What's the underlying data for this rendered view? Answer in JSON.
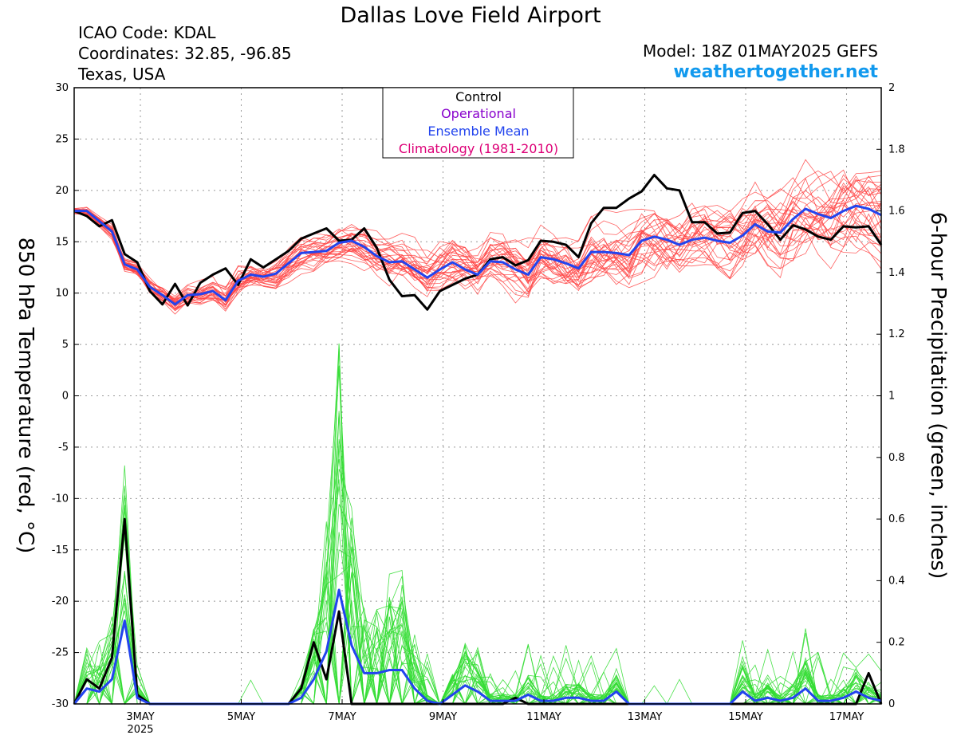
{
  "header": {
    "title": "Dallas Love Field Airport",
    "icao": "ICAO Code: KDAL",
    "coords": "Coordinates: 32.85, -96.85",
    "region": "Texas, USA",
    "model": "Model: 18Z 01MAY2025 GEFS",
    "brand": "weathertogether.net"
  },
  "colors": {
    "ensemble_temp": "#ff4444",
    "ensemble_precip": "#33dd33",
    "control": "#000000",
    "operational": "#8800cc",
    "mean": "#2244ee",
    "climatology": "#dd0077"
  },
  "chart_data": {
    "type": "line",
    "title": "Dallas Love Field Airport",
    "ylabel_left": "850 hPa Temperature (red, °C)",
    "ylabel_right": "6-hour Precipitation (green, inches)",
    "ylim_left": [
      -30,
      30
    ],
    "ylim_right": [
      0,
      2
    ],
    "yticks_left": [
      "30",
      "25",
      "20",
      "15",
      "10",
      "5",
      "0",
      "-5",
      "-10",
      "-15",
      "-20",
      "-25",
      "-30"
    ],
    "yticks_right": [
      "2",
      "1.8",
      "1.6",
      "1.4",
      "1.2",
      "1",
      "0.8",
      "0.6",
      "0.4",
      "0.2",
      "0"
    ],
    "xticks": [
      {
        "label": "3MAY",
        "sub": "2025",
        "t": 31.5
      },
      {
        "label": "5MAY",
        "sub": "",
        "t": 79.5
      },
      {
        "label": "7MAY",
        "sub": "",
        "t": 127.5
      },
      {
        "label": "9MAY",
        "sub": "",
        "t": 175.5
      },
      {
        "label": "11MAY",
        "sub": "",
        "t": 223.5
      },
      {
        "label": "13MAY",
        "sub": "",
        "t": 271.5
      },
      {
        "label": "15MAY",
        "sub": "",
        "t": 319.5
      },
      {
        "label": "17MAY",
        "sub": "",
        "t": 367.5
      }
    ],
    "x_hours_range": [
      0,
      384
    ],
    "grid": true,
    "legend": {
      "position": "top-center",
      "items": [
        "Control",
        "Operational",
        "Ensemble Mean",
        "Climatology (1981-2010)"
      ]
    },
    "x_hours": [
      0,
      6,
      12,
      18,
      24,
      30,
      36,
      42,
      48,
      54,
      60,
      66,
      72,
      78,
      84,
      90,
      96,
      102,
      108,
      114,
      120,
      126,
      132,
      138,
      144,
      150,
      156,
      162,
      168,
      174,
      180,
      186,
      192,
      198,
      204,
      210,
      216,
      222,
      228,
      234,
      240,
      246,
      252,
      258,
      264,
      270,
      276,
      282,
      288,
      294,
      300,
      306,
      312,
      318,
      324,
      330,
      336,
      342,
      348,
      354,
      360,
      366,
      372,
      378,
      384
    ],
    "series": [
      {
        "name": "Control",
        "kind": "temp",
        "values": [
          18,
          17.5,
          16.5,
          17.1,
          13.8,
          13,
          10.2,
          8.9,
          10.9,
          8.8,
          11,
          11.8,
          12.4,
          10.8,
          13.3,
          12.5,
          13.3,
          14.1,
          15.3,
          15.8,
          16.3,
          15.1,
          15.2,
          16.3,
          14.4,
          11.3,
          9.7,
          9.8,
          8.4,
          10.2,
          10.8,
          11.4,
          11.8,
          13.3,
          13.5,
          12.7,
          13.2,
          15.1,
          15,
          14.7,
          13.5,
          16.8,
          18.3,
          18.3,
          19.2,
          19.9,
          21.5,
          20.2,
          20,
          16.9,
          16.9,
          15.8,
          15.9,
          17.8,
          18,
          16.7,
          15.2,
          16.6,
          16.2,
          15.5,
          15.2,
          16.5,
          16.4,
          16.5,
          14.7
        ]
      },
      {
        "name": "Ensemble Mean",
        "kind": "temp",
        "values": [
          18,
          18,
          17,
          16,
          12.8,
          12.3,
          10.6,
          9.8,
          8.9,
          9.8,
          9.9,
          10.2,
          9.3,
          11.2,
          11.8,
          11.6,
          11.9,
          12.9,
          13.9,
          14,
          14.1,
          14.9,
          15.1,
          14.5,
          13.6,
          13,
          13.1,
          12.3,
          11.5,
          12.3,
          13,
          12.3,
          11.8,
          13.1,
          13,
          12.3,
          11.8,
          13.5,
          13.3,
          12.9,
          12.4,
          14,
          14,
          13.9,
          13.7,
          15.1,
          15.5,
          15.2,
          14.7,
          15.2,
          15.4,
          15.1,
          14.9,
          15.6,
          16.7,
          16,
          15.9,
          17.2,
          18.2,
          17.7,
          17.3,
          18,
          18.5,
          18.2,
          17.6
        ]
      },
      {
        "name": "Control Precip",
        "kind": "precip",
        "values": [
          0,
          0.08,
          0.05,
          0.15,
          0.6,
          0.03,
          0,
          0,
          0,
          0,
          0,
          0,
          0,
          0,
          0,
          0,
          0,
          0,
          0.05,
          0.2,
          0.08,
          0.3,
          0,
          0,
          0,
          0,
          0,
          0,
          0,
          0,
          0,
          0,
          0,
          0,
          0,
          0.02,
          0,
          0,
          0,
          0,
          0,
          0,
          0,
          0,
          0,
          0,
          0,
          0,
          0,
          0,
          0,
          0,
          0,
          0,
          0,
          0,
          0,
          0,
          0,
          0,
          0,
          0,
          0,
          0.1,
          0
        ]
      },
      {
        "name": "Ensemble Mean Precip",
        "kind": "precip",
        "values": [
          0,
          0.05,
          0.04,
          0.08,
          0.27,
          0.02,
          0,
          0,
          0,
          0,
          0,
          0,
          0,
          0,
          0,
          0,
          0,
          0,
          0.02,
          0.08,
          0.17,
          0.37,
          0.19,
          0.1,
          0.1,
          0.11,
          0.11,
          0.05,
          0.01,
          0,
          0.03,
          0.06,
          0.04,
          0.01,
          0.01,
          0.01,
          0.03,
          0.01,
          0.01,
          0.02,
          0.02,
          0.01,
          0.01,
          0.04,
          0,
          0,
          0,
          0,
          0,
          0,
          0,
          0,
          0,
          0.04,
          0.01,
          0.02,
          0.01,
          0.02,
          0.05,
          0.01,
          0.01,
          0.02,
          0.04,
          0.02,
          0.01
        ]
      }
    ]
  }
}
